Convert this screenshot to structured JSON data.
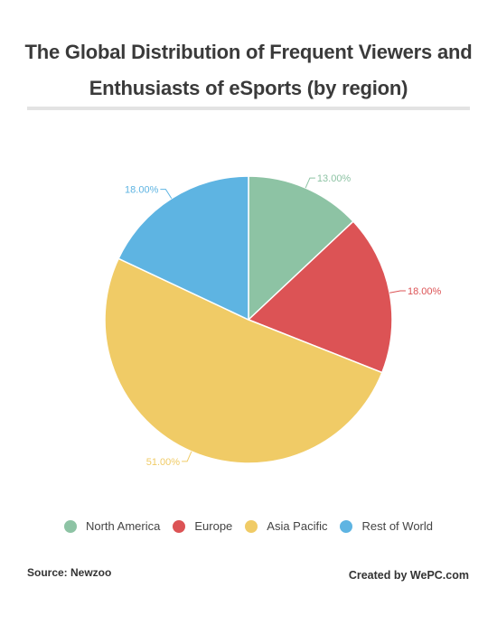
{
  "title_lines": [
    "The Global Distribution of Frequent Viewers and",
    "Enthusiasts of eSports (by region)"
  ],
  "chart_data": {
    "type": "pie",
    "title": "The Global Distribution of Frequent Viewers and Enthusiasts of eSports (by region)",
    "categories": [
      "North America",
      "Europe",
      "Asia Pacific",
      "Rest of World"
    ],
    "values": [
      13.0,
      18.0,
      51.0,
      18.0
    ],
    "labels": [
      "13.00%",
      "18.00%",
      "51.00%",
      "18.00%"
    ],
    "colors": [
      "#8dc3a4",
      "#dc5355",
      "#f0cb66",
      "#5eb4e2"
    ],
    "legend_position": "bottom"
  },
  "footer": {
    "source": "Source: Newzoo",
    "credit": "Created by WePC.com"
  }
}
